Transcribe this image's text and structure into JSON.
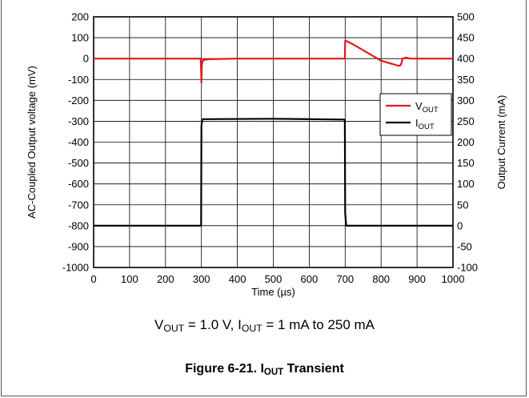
{
  "figure": {
    "caption_prefix": "Figure 6-21. I",
    "caption_sub": "OUT",
    "caption_suffix": " Transient"
  },
  "conditions": {
    "v_main": "V",
    "v_sub": "OUT",
    "v_value": " = 1.0 V, I",
    "i_sub": "OUT",
    "i_value": " = 1 mA to 250 mA"
  },
  "colors": {
    "vout": "#e8141c",
    "iout": "#000000",
    "grid": "#000000"
  },
  "chart_data": {
    "type": "line",
    "xlabel": "Time (µs)",
    "ylabel": "AC-Coupled Output voltage (mV)",
    "y2label": "Output Current (mA)",
    "xlim": [
      0,
      1000
    ],
    "ylim": [
      -1000,
      200
    ],
    "y2lim": [
      -100,
      500
    ],
    "x_ticks": [
      0,
      100,
      200,
      300,
      400,
      500,
      600,
      700,
      800,
      900,
      1000
    ],
    "y_ticks": [
      200,
      100,
      0,
      -100,
      -200,
      -300,
      -400,
      -500,
      -600,
      -700,
      -800,
      -900,
      -1000
    ],
    "y2_ticks": [
      500,
      450,
      400,
      350,
      300,
      250,
      200,
      150,
      100,
      50,
      0,
      -50,
      -100
    ],
    "grid": true,
    "legend_position": "right",
    "series": [
      {
        "name": "VOUT",
        "axis": "left",
        "x": [
          0,
          298,
          299,
          300,
          301,
          303,
          310,
          320,
          400,
          500,
          600,
          699,
          700,
          702,
          720,
          750,
          780,
          800,
          820,
          840,
          850,
          855,
          860,
          870,
          880,
          900,
          1000
        ],
        "y": [
          0,
          0,
          -55,
          -115,
          -40,
          -10,
          -5,
          -3,
          0,
          0,
          0,
          0,
          85,
          85,
          70,
          40,
          10,
          -10,
          -20,
          -30,
          -35,
          -30,
          0,
          5,
          0,
          0,
          0
        ]
      },
      {
        "name": "IOUT",
        "axis": "right",
        "x": [
          0,
          299,
          300,
          303,
          500,
          699,
          700,
          703,
          1000
        ],
        "y": [
          0,
          0,
          240,
          255,
          256,
          254,
          30,
          0,
          0
        ]
      }
    ]
  }
}
